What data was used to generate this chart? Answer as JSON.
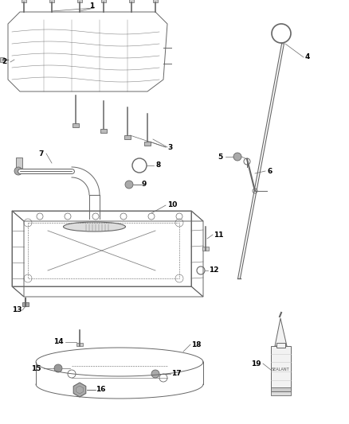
{
  "bg_color": "#ffffff",
  "line_color": "#666666",
  "label_color": "#000000",
  "label_fontsize": 6.5,
  "fig_w": 4.38,
  "fig_h": 5.33,
  "dpi": 100,
  "xlim": [
    0,
    438
  ],
  "ylim": [
    0,
    533
  ]
}
